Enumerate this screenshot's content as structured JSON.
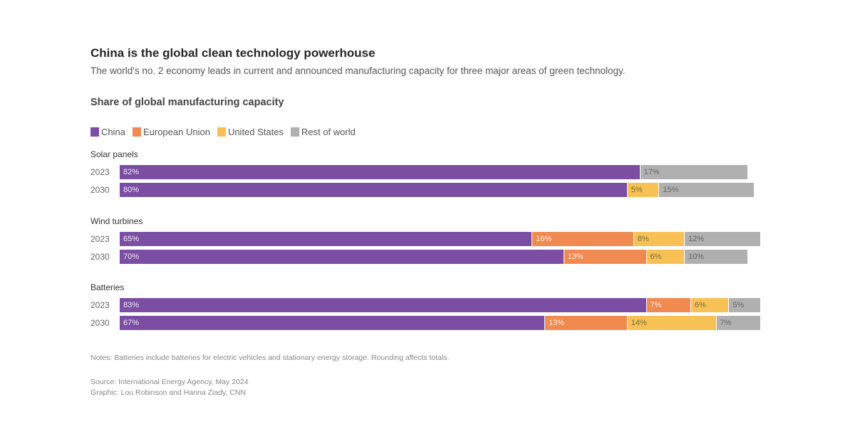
{
  "header": {
    "title": "China is the global clean technology powerhouse",
    "subtitle": "The world's no. 2 economy leads in current and announced manufacturing capacity for three major areas of green technology."
  },
  "chart_data": {
    "type": "bar",
    "orientation": "horizontal-stacked",
    "title": "Share of global manufacturing capacity",
    "xlabel": "",
    "ylabel": "",
    "unit": "%",
    "xlim": [
      0,
      100
    ],
    "grid": false,
    "legend_position": "top-left",
    "series_names": [
      "China",
      "European Union",
      "United States",
      "Rest of world"
    ],
    "colors": {
      "China": "#7b4ea3",
      "European Union": "#f08a50",
      "United States": "#f7c155",
      "Rest of world": "#b0b0b0"
    },
    "label_colors": {
      "China": "#f2ecf8",
      "European Union": "#fdf0e6",
      "United States": "#7a6a3a",
      "Rest of world": "#666666"
    },
    "groups": [
      {
        "name": "Solar panels",
        "rows": [
          {
            "year": "2023",
            "values": {
              "China": 82,
              "European Union": 0,
              "United States": 0,
              "Rest of world": 17
            }
          },
          {
            "year": "2030",
            "values": {
              "China": 80,
              "European Union": 0,
              "United States": 5,
              "Rest of world": 15
            }
          }
        ]
      },
      {
        "name": "Wind turbines",
        "rows": [
          {
            "year": "2023",
            "values": {
              "China": 65,
              "European Union": 16,
              "United States": 8,
              "Rest of world": 12
            }
          },
          {
            "year": "2030",
            "values": {
              "China": 70,
              "European Union": 13,
              "United States": 6,
              "Rest of world": 10
            }
          }
        ]
      },
      {
        "name": "Batteries",
        "rows": [
          {
            "year": "2023",
            "values": {
              "China": 83,
              "European Union": 7,
              "United States": 6,
              "Rest of world": 5
            }
          },
          {
            "year": "2030",
            "values": {
              "China": 67,
              "European Union": 13,
              "United States": 14,
              "Rest of world": 7
            }
          }
        ]
      }
    ]
  },
  "footer": {
    "notes": "Notes: Batteries include batteries for electric vehicles and stationary energy storage. Rounding affects totals.",
    "source": "Source: International Energy Agency, May 2024",
    "credit": "Graphic: Lou Robinson and Hanna Ziady, CNN"
  }
}
